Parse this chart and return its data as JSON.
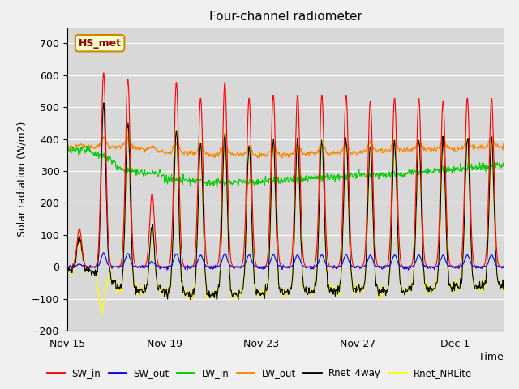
{
  "title": "Four-channel radiometer",
  "xlabel": "Time",
  "ylabel": "Solar radiation (W/m2)",
  "ylim": [
    -200,
    750
  ],
  "yticks": [
    -200,
    -100,
    0,
    100,
    200,
    300,
    400,
    500,
    600,
    700
  ],
  "fig_bg_color": "#f0f0f0",
  "plot_bg_color": "#d8d8d8",
  "station_label": "HS_met",
  "colors": {
    "SW_in": "#ff0000",
    "SW_out": "#0000ff",
    "LW_in": "#00cc00",
    "LW_out": "#ff8800",
    "Rnet_4way": "#000000",
    "Rnet_NRLite": "#ffff00"
  },
  "x_tick_labels": [
    "Nov 15",
    "Nov 19",
    "Nov 23",
    "Nov 27",
    "Dec 1"
  ],
  "x_tick_positions": [
    0,
    4,
    8,
    12,
    16
  ],
  "n_days": 18,
  "pts_per_day": 48,
  "peaks_SW_in": [
    120,
    610,
    590,
    230,
    580,
    530,
    580,
    530,
    540,
    540,
    540,
    540,
    520,
    530,
    530,
    520,
    530,
    530
  ]
}
